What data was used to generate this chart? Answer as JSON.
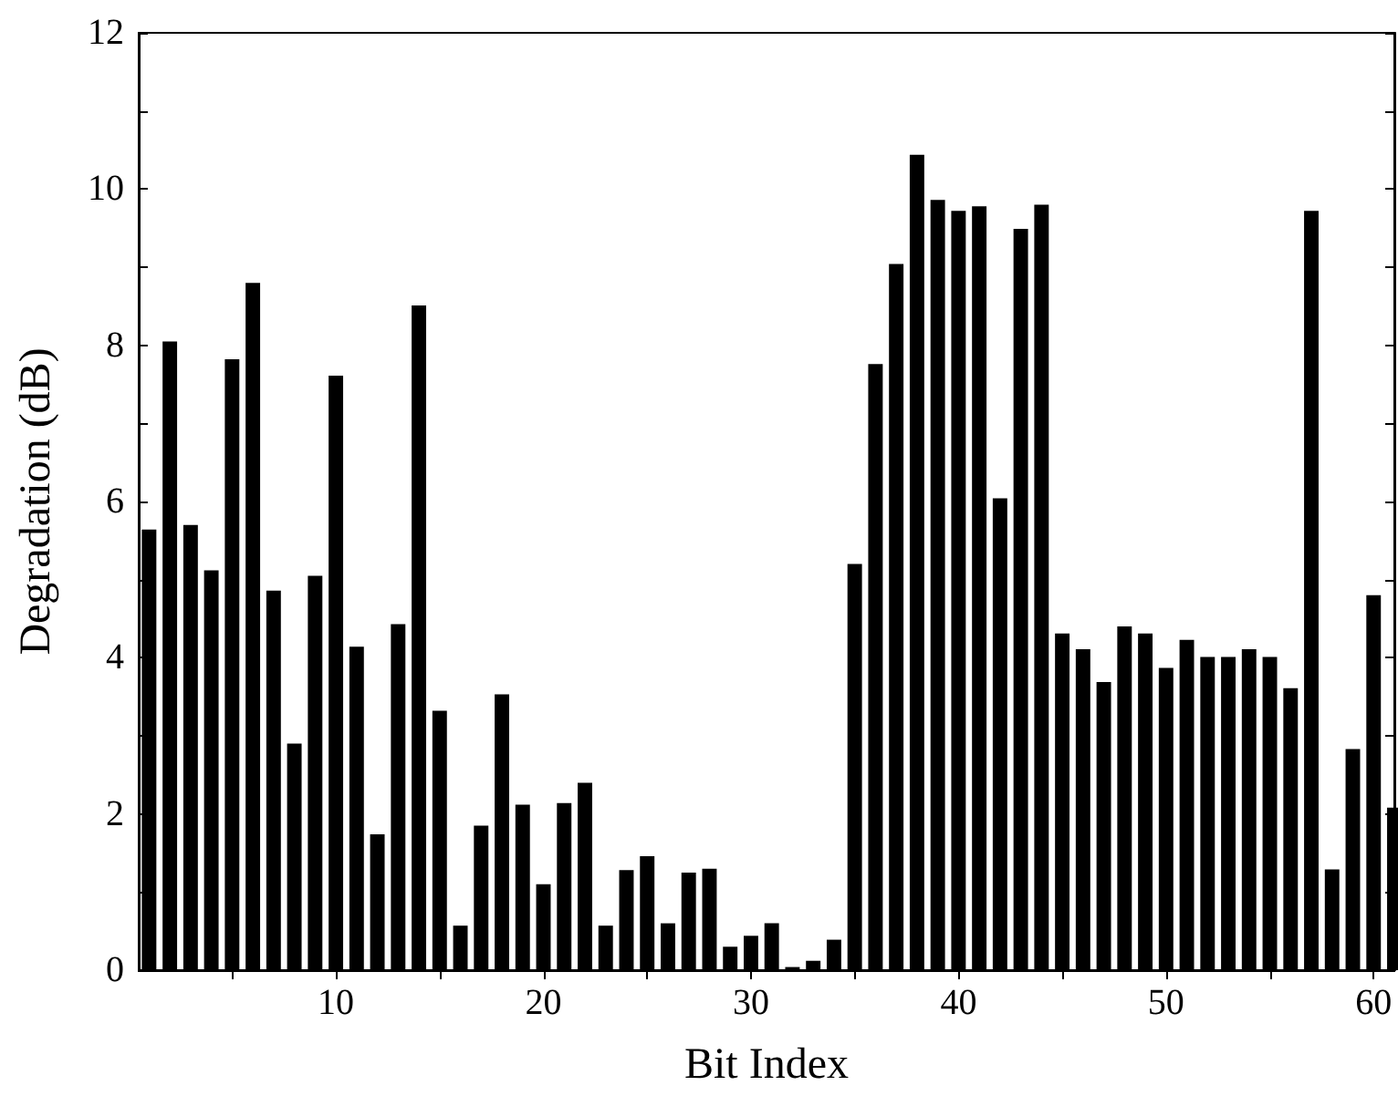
{
  "chart_data": {
    "type": "bar",
    "xlabel": "Bit Index",
    "ylabel": "Degradation (dB)",
    "x": [
      1,
      2,
      3,
      4,
      5,
      6,
      7,
      8,
      9,
      10,
      11,
      12,
      13,
      14,
      15,
      16,
      17,
      18,
      19,
      20,
      21,
      22,
      23,
      24,
      25,
      26,
      27,
      28,
      29,
      30,
      31,
      32,
      33,
      34,
      35,
      36,
      37,
      38,
      39,
      40,
      41,
      42,
      43,
      44,
      45,
      46,
      47,
      48,
      49,
      50,
      51,
      52,
      53,
      54,
      55,
      56,
      57,
      58,
      59,
      60,
      61
    ],
    "values": [
      5.64,
      8.05,
      5.7,
      5.12,
      7.82,
      8.8,
      4.86,
      2.9,
      5.05,
      7.61,
      4.14,
      1.74,
      4.43,
      8.51,
      3.32,
      0.57,
      1.85,
      3.53,
      2.12,
      1.1,
      2.14,
      2.4,
      0.57,
      1.28,
      1.46,
      0.6,
      1.25,
      1.3,
      0.3,
      0.44,
      0.6,
      0.04,
      0.12,
      0.39,
      5.2,
      7.76,
      9.04,
      10.44,
      9.86,
      9.72,
      9.78,
      6.04,
      9.49,
      9.8,
      4.31,
      4.11,
      3.69,
      4.4,
      4.31,
      3.87,
      4.23,
      4.01,
      4.01,
      4.11,
      4.01,
      3.61,
      9.72,
      1.29,
      2.83,
      4.8,
      2.08
    ],
    "color": "#000000",
    "xlim": [
      0.5,
      61
    ],
    "xticks": [
      {
        "value": 5,
        "label": null
      },
      10,
      {
        "value": 15,
        "label": null
      },
      20,
      {
        "value": 25,
        "label": null
      },
      30,
      {
        "value": 35,
        "label": null
      },
      40,
      {
        "value": 45,
        "label": null
      },
      50,
      {
        "value": 55,
        "label": null
      },
      60
    ],
    "ylim": [
      0,
      12
    ],
    "yticks": [
      0,
      {
        "value": 1,
        "label": null
      },
      2,
      {
        "value": 3,
        "label": null
      },
      4,
      {
        "value": 5,
        "label": null
      },
      6,
      {
        "value": 7,
        "label": null
      },
      8,
      {
        "value": 9,
        "label": null
      },
      10,
      {
        "value": 11,
        "label": null
      },
      12
    ],
    "grid": false
  }
}
